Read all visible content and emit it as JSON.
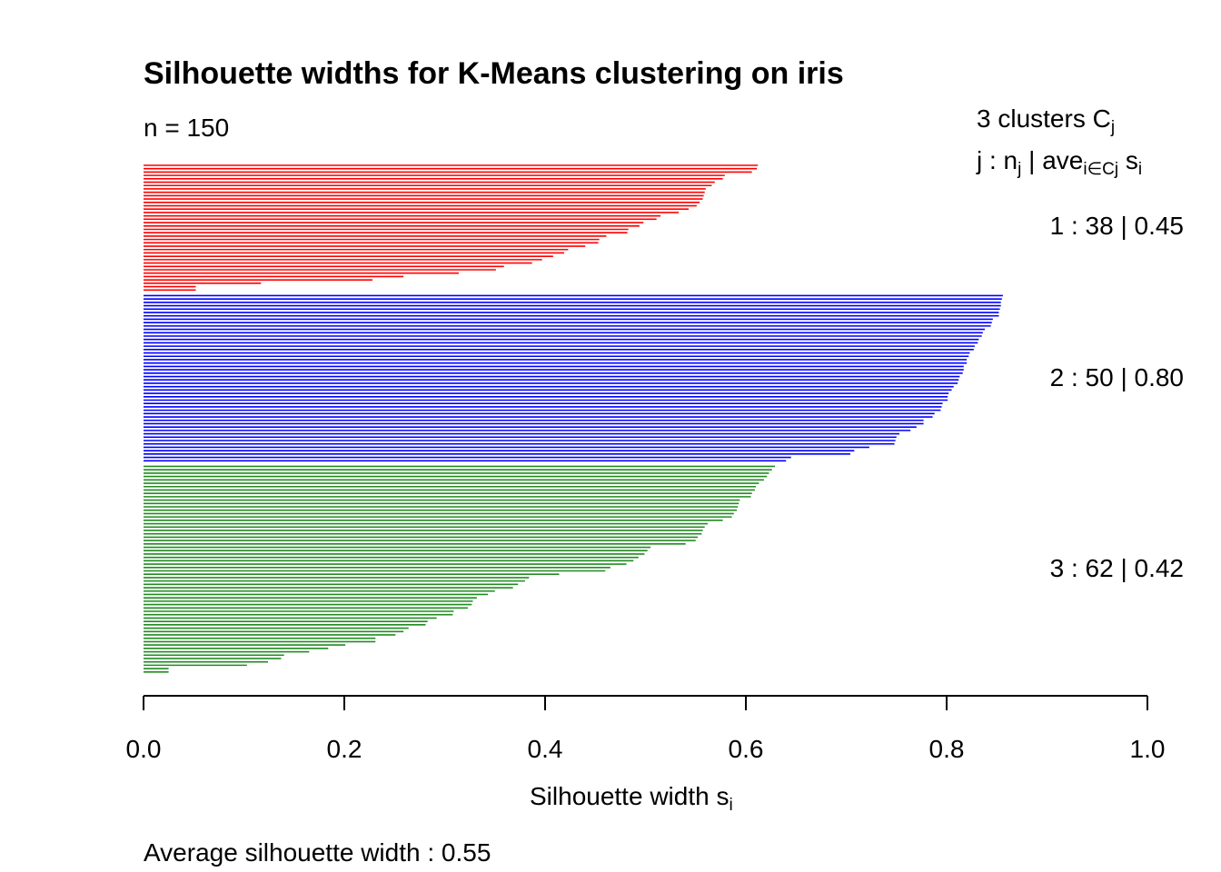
{
  "chart_data": {
    "type": "bar",
    "orientation": "horizontal",
    "title": "Silhouette widths for K-Means clustering on iris",
    "subtitle": "n = 150",
    "xlabel": "Silhouette width",
    "xlabel_sub": "i",
    "xlabel_base": "s",
    "xlim": [
      0,
      1
    ],
    "xticks": [
      "0.0",
      "0.2",
      "0.4",
      "0.6",
      "0.8",
      "1.0"
    ],
    "footer": "Average silhouette width :  0.55",
    "legend": {
      "header1_main": "3  clusters  C",
      "header1_sub": "j",
      "header2_a": "j :  n",
      "header2_a_sub": "j",
      "header2_b": " | ave",
      "header2_b_sub": "i∈Cj",
      "header2_c": "  s",
      "header2_c_sub": "i"
    },
    "clusters": [
      {
        "label": "1 :   38  |  0.45",
        "id": 1,
        "n": 38,
        "avg": 0.45,
        "color": "#ff0000",
        "values": [
          0.612,
          0.611,
          0.606,
          0.579,
          0.577,
          0.569,
          0.566,
          0.56,
          0.559,
          0.558,
          0.557,
          0.554,
          0.551,
          0.543,
          0.533,
          0.515,
          0.511,
          0.498,
          0.494,
          0.483,
          0.482,
          0.461,
          0.454,
          0.453,
          0.44,
          0.423,
          0.419,
          0.408,
          0.397,
          0.387,
          0.359,
          0.351,
          0.314,
          0.259,
          0.228,
          0.117,
          0.052,
          0.052
        ]
      },
      {
        "label": "2 :   50  |  0.80",
        "id": 2,
        "n": 50,
        "avg": 0.8,
        "color": "#0000ff",
        "values": [
          0.856,
          0.855,
          0.854,
          0.854,
          0.853,
          0.852,
          0.852,
          0.846,
          0.845,
          0.844,
          0.838,
          0.836,
          0.835,
          0.832,
          0.831,
          0.828,
          0.827,
          0.823,
          0.822,
          0.82,
          0.82,
          0.817,
          0.817,
          0.816,
          0.813,
          0.812,
          0.811,
          0.807,
          0.805,
          0.802,
          0.801,
          0.801,
          0.796,
          0.795,
          0.794,
          0.788,
          0.786,
          0.777,
          0.777,
          0.77,
          0.764,
          0.753,
          0.75,
          0.749,
          0.748,
          0.723,
          0.708,
          0.704,
          0.645,
          0.64
        ]
      },
      {
        "label": "3 :   62  |  0.42",
        "id": 3,
        "n": 62,
        "avg": 0.42,
        "color": "#228b22",
        "values": [
          0.629,
          0.626,
          0.623,
          0.621,
          0.618,
          0.613,
          0.61,
          0.609,
          0.606,
          0.605,
          0.594,
          0.593,
          0.592,
          0.591,
          0.588,
          0.586,
          0.577,
          0.562,
          0.559,
          0.557,
          0.556,
          0.552,
          0.55,
          0.54,
          0.505,
          0.502,
          0.499,
          0.493,
          0.488,
          0.481,
          0.465,
          0.46,
          0.414,
          0.384,
          0.38,
          0.373,
          0.368,
          0.35,
          0.343,
          0.332,
          0.328,
          0.327,
          0.323,
          0.309,
          0.308,
          0.292,
          0.283,
          0.281,
          0.264,
          0.259,
          0.251,
          0.231,
          0.231,
          0.201,
          0.184,
          0.165,
          0.14,
          0.137,
          0.124,
          0.103,
          0.025,
          0.025
        ]
      }
    ]
  }
}
